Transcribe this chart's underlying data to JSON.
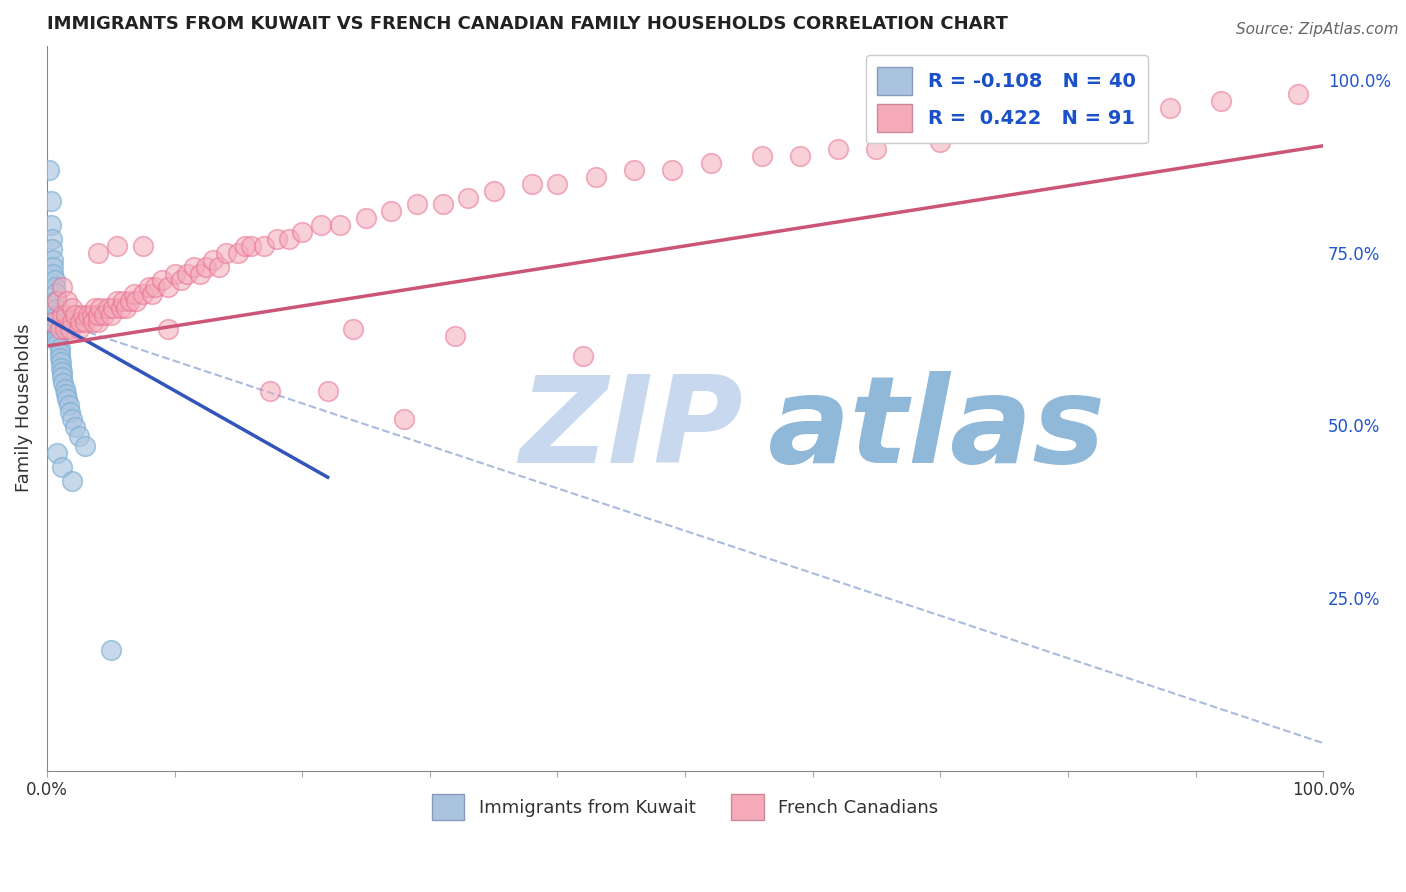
{
  "title": "IMMIGRANTS FROM KUWAIT VS FRENCH CANADIAN FAMILY HOUSEHOLDS CORRELATION CHART",
  "source": "Source: ZipAtlas.com",
  "ylabel": "Family Households",
  "right_yticklabels": [
    "25.0%",
    "50.0%",
    "75.0%",
    "100.0%"
  ],
  "right_yticks": [
    0.25,
    0.5,
    0.75,
    1.0
  ],
  "legend_bottom": [
    "Immigrants from Kuwait",
    "French Canadians"
  ],
  "blue_fill_color": "#aac4e0",
  "blue_edge_color": "#7aafd4",
  "pink_fill_color": "#f4aab8",
  "pink_edge_color": "#e87090",
  "blue_line_color": "#3355bb",
  "pink_line_color": "#cc5577",
  "dash_line_color": "#aabbdd",
  "watermark_zip": "ZIP",
  "watermark_atlas": "atlas",
  "watermark_color_zip": "#c8d8ee",
  "watermark_color_atlas": "#90b8d8",
  "R_blue": -0.108,
  "N_blue": 40,
  "R_pink": 0.422,
  "N_pink": 91,
  "blue_legend_color": "#aac4e0",
  "pink_legend_color": "#f4aab8",
  "legend_text_color": "#1a50c8",
  "xlim": [
    0,
    1.0
  ],
  "ylim": [
    0.0,
    1.05
  ],
  "blue_line_x0": 0.0,
  "blue_line_y0": 0.655,
  "blue_line_x1": 0.22,
  "blue_line_y1": 0.425,
  "pink_line_x0": 0.0,
  "pink_line_y0": 0.615,
  "pink_line_x1": 1.0,
  "pink_line_y1": 0.905,
  "dash_line_x0": 0.0,
  "dash_line_y0": 0.655,
  "dash_line_x1": 1.0,
  "dash_line_y1": 0.04,
  "blue_points_x": [
    0.002,
    0.003,
    0.003,
    0.004,
    0.004,
    0.005,
    0.005,
    0.005,
    0.006,
    0.006,
    0.007,
    0.007,
    0.007,
    0.008,
    0.008,
    0.008,
    0.009,
    0.009,
    0.009,
    0.01,
    0.01,
    0.01,
    0.011,
    0.011,
    0.012,
    0.012,
    0.013,
    0.014,
    0.015,
    0.016,
    0.017,
    0.018,
    0.02,
    0.022,
    0.025,
    0.03,
    0.008,
    0.012,
    0.02,
    0.05
  ],
  "blue_points_y": [
    0.87,
    0.825,
    0.79,
    0.77,
    0.755,
    0.74,
    0.73,
    0.72,
    0.71,
    0.7,
    0.692,
    0.68,
    0.668,
    0.66,
    0.652,
    0.643,
    0.635,
    0.628,
    0.62,
    0.612,
    0.605,
    0.598,
    0.592,
    0.583,
    0.578,
    0.57,
    0.562,
    0.553,
    0.545,
    0.538,
    0.53,
    0.52,
    0.51,
    0.498,
    0.485,
    0.47,
    0.46,
    0.44,
    0.42,
    0.175
  ],
  "pink_points_x": [
    0.005,
    0.008,
    0.01,
    0.012,
    0.012,
    0.014,
    0.015,
    0.016,
    0.018,
    0.02,
    0.02,
    0.022,
    0.025,
    0.026,
    0.028,
    0.03,
    0.032,
    0.035,
    0.036,
    0.038,
    0.04,
    0.04,
    0.042,
    0.045,
    0.048,
    0.05,
    0.052,
    0.055,
    0.058,
    0.06,
    0.062,
    0.065,
    0.068,
    0.07,
    0.075,
    0.08,
    0.082,
    0.085,
    0.09,
    0.095,
    0.1,
    0.105,
    0.11,
    0.115,
    0.12,
    0.125,
    0.13,
    0.135,
    0.14,
    0.15,
    0.155,
    0.16,
    0.17,
    0.18,
    0.19,
    0.2,
    0.215,
    0.23,
    0.25,
    0.27,
    0.29,
    0.31,
    0.33,
    0.35,
    0.38,
    0.4,
    0.43,
    0.46,
    0.49,
    0.52,
    0.56,
    0.59,
    0.62,
    0.65,
    0.7,
    0.75,
    0.79,
    0.83,
    0.88,
    0.92,
    0.32,
    0.04,
    0.055,
    0.075,
    0.095,
    0.24,
    0.175,
    0.22,
    0.28,
    0.42,
    0.98
  ],
  "pink_points_y": [
    0.65,
    0.68,
    0.64,
    0.66,
    0.7,
    0.64,
    0.66,
    0.68,
    0.64,
    0.65,
    0.67,
    0.66,
    0.64,
    0.65,
    0.66,
    0.65,
    0.66,
    0.66,
    0.65,
    0.67,
    0.65,
    0.66,
    0.67,
    0.66,
    0.67,
    0.66,
    0.67,
    0.68,
    0.67,
    0.68,
    0.67,
    0.68,
    0.69,
    0.68,
    0.69,
    0.7,
    0.69,
    0.7,
    0.71,
    0.7,
    0.72,
    0.71,
    0.72,
    0.73,
    0.72,
    0.73,
    0.74,
    0.73,
    0.75,
    0.75,
    0.76,
    0.76,
    0.76,
    0.77,
    0.77,
    0.78,
    0.79,
    0.79,
    0.8,
    0.81,
    0.82,
    0.82,
    0.83,
    0.84,
    0.85,
    0.85,
    0.86,
    0.87,
    0.87,
    0.88,
    0.89,
    0.89,
    0.9,
    0.9,
    0.91,
    0.93,
    0.94,
    0.95,
    0.96,
    0.97,
    0.63,
    0.75,
    0.76,
    0.76,
    0.64,
    0.64,
    0.55,
    0.55,
    0.51,
    0.6,
    0.98
  ]
}
